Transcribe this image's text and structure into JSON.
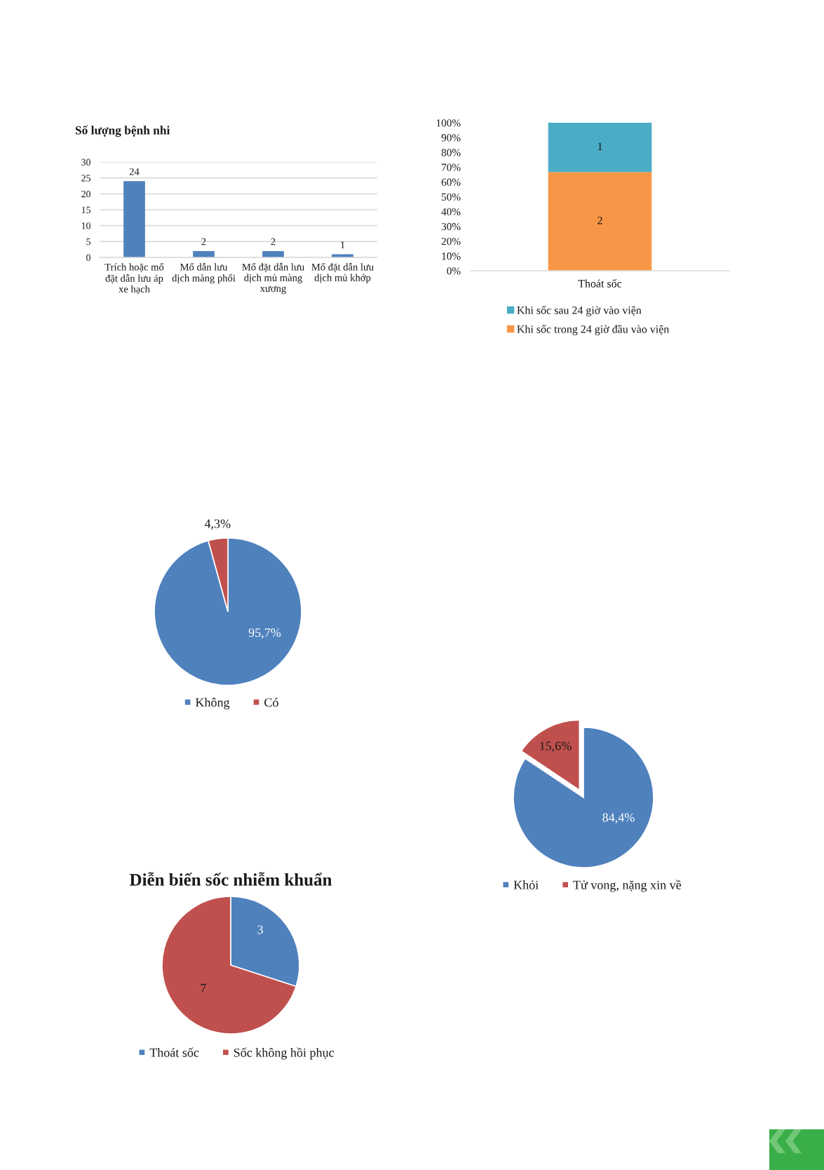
{
  "chart_data": [
    {
      "type": "bar",
      "title": "Số lượng bệnh nhi",
      "categories": [
        "Trích hoặc mổ\nđặt dẫn lưu áp\nxe hạch",
        "Mổ dẫn lưu\ndịch màng phổi",
        "Mổ đặt dẫn lưu\ndịch mủ màng\nxương",
        "Mổ đặt dẫn lưu\ndịch mủ khớp"
      ],
      "values": [
        24,
        2,
        2,
        1
      ],
      "color": "#4f81bd",
      "ylim": [
        0,
        30
      ],
      "yticks": [
        0,
        5,
        10,
        15,
        20,
        25,
        30
      ],
      "grid": "y",
      "data_labels": true
    },
    {
      "type": "bar",
      "stacked": true,
      "categories": [
        "Thoát sốc"
      ],
      "series": [
        {
          "name": "Khi sốc trong 24 giờ đầu vào viện",
          "color": "#f79646",
          "values": [
            66.7
          ]
        },
        {
          "name": "Khi sốc sau 24 giờ vào viện",
          "color": "#4bacc6",
          "values": [
            33.3
          ]
        }
      ],
      "annotations": [
        "2",
        "1"
      ],
      "ylim": [
        0,
        100
      ],
      "yticks": [
        {
          "value": 0,
          "label": "0%"
        },
        {
          "value": 10,
          "label": "10%"
        },
        {
          "value": 20,
          "label": "20%"
        },
        {
          "value": 30,
          "label": "30%"
        },
        {
          "value": 40,
          "label": "40%"
        },
        {
          "value": 50,
          "label": "50%"
        },
        {
          "value": 60,
          "label": "60%"
        },
        {
          "value": 70,
          "label": "70%"
        },
        {
          "value": 80,
          "label": "80%"
        },
        {
          "value": 90,
          "label": "90%"
        },
        {
          "value": 100,
          "label": "100%"
        }
      ],
      "legend": "bottom"
    },
    {
      "type": "pie",
      "categories": [
        "Không",
        "Có"
      ],
      "values": [
        95.7,
        4.3
      ],
      "value_labels": [
        "95,7%",
        "4,3%"
      ],
      "colors": [
        "#4f81bd",
        "#c0504d"
      ],
      "legend": "bottom"
    },
    {
      "type": "pie",
      "categories": [
        "Khỏi",
        "Tử vong, nặng xin về"
      ],
      "values": [
        84.4,
        15.6
      ],
      "value_labels": [
        "84,4%",
        "15,6%"
      ],
      "colors": [
        "#4f81bd",
        "#c0504d"
      ],
      "legend": "bottom"
    },
    {
      "type": "pie",
      "title": "Diễn biến sốc nhiễm khuẩn",
      "categories": [
        "Thoát sốc",
        "Sốc không hồi phục"
      ],
      "values": [
        3,
        7
      ],
      "colors": [
        "#4f81bd",
        "#c0504d"
      ],
      "data_labels": true,
      "legend": "bottom"
    }
  ]
}
